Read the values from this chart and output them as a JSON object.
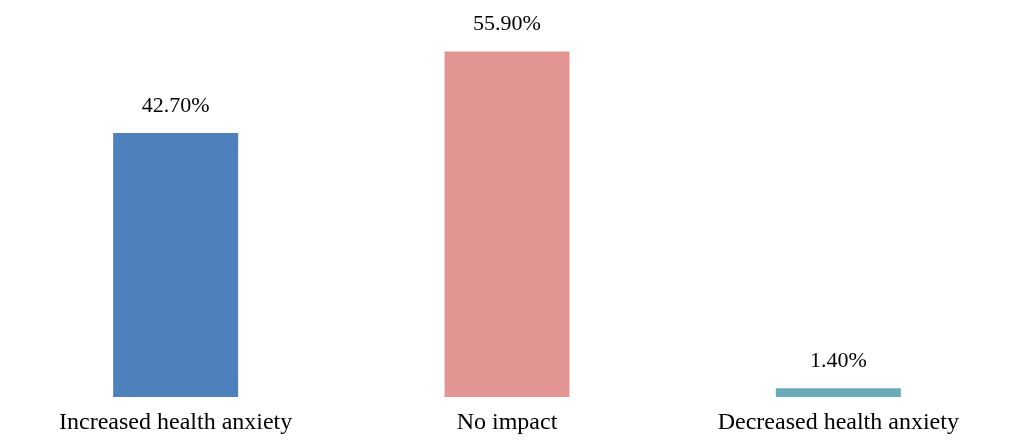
{
  "chart_data": {
    "type": "bar",
    "categories": [
      "Increased health anxiety",
      "No impact",
      "Decreased health anxiety"
    ],
    "values": [
      42.7,
      55.9,
      1.4
    ],
    "colors": [
      "#4f81bd",
      "#e39594",
      "#6aa9b6"
    ],
    "value_labels": [
      "42.70%",
      "55.90%",
      "1.40%"
    ],
    "grid": false,
    "legend": false
  }
}
